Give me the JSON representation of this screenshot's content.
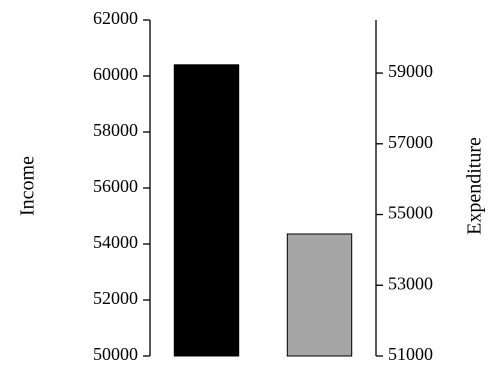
{
  "chart_data": {
    "type": "bar",
    "categories": [
      "",
      ""
    ],
    "left_axis": {
      "label": "Income",
      "ylim": [
        50000,
        62000
      ],
      "ticks": [
        50000,
        52000,
        54000,
        56000,
        58000,
        60000,
        62000
      ]
    },
    "right_axis": {
      "label": "Expenditure",
      "ylim": [
        51000,
        60500
      ],
      "ticks": [
        51000,
        53000,
        55000,
        57000,
        59000
      ]
    },
    "series": [
      {
        "axis": "left",
        "value": 60400,
        "color": "#000000"
      },
      {
        "axis": "right",
        "value": 54450,
        "color": "#a6a6a6"
      }
    ],
    "grid": false,
    "legend": "none"
  }
}
